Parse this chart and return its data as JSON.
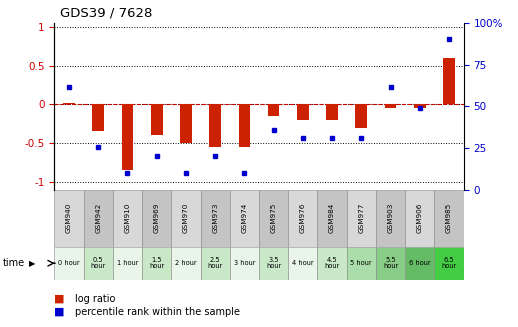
{
  "title": "GDS39 / 7628",
  "samples": [
    "GSM940",
    "GSM942",
    "GSM910",
    "GSM969",
    "GSM970",
    "GSM973",
    "GSM974",
    "GSM975",
    "GSM976",
    "GSM984",
    "GSM977",
    "GSM903",
    "GSM906",
    "GSM985"
  ],
  "time_labels": [
    "0 hour",
    "0.5\nhour",
    "1 hour",
    "1.5\nhour",
    "2 hour",
    "2.5\nhour",
    "3 hour",
    "3.5\nhour",
    "4 hour",
    "4.5\nhour",
    "5 hour",
    "5.5\nhour",
    "6 hour",
    "6.5\nhour"
  ],
  "log_ratio": [
    0.02,
    -0.35,
    -0.85,
    -0.4,
    -0.5,
    -0.55,
    -0.55,
    -0.15,
    -0.2,
    -0.2,
    -0.3,
    -0.05,
    -0.05,
    0.6
  ],
  "percentile": [
    60,
    25,
    10,
    20,
    10,
    20,
    10,
    35,
    30,
    30,
    30,
    60,
    48,
    88
  ],
  "gsm_bg_colors": [
    "#d8d8d8",
    "#c4c4c4",
    "#d8d8d8",
    "#c4c4c4",
    "#d8d8d8",
    "#c4c4c4",
    "#d8d8d8",
    "#c4c4c4",
    "#d8d8d8",
    "#c4c4c4",
    "#d8d8d8",
    "#c4c4c4",
    "#d8d8d8",
    "#c4c4c4"
  ],
  "time_bg_colors": [
    "#e8f5e8",
    "#c8e8c8",
    "#e8f5e8",
    "#c8e8c8",
    "#e8f5e8",
    "#c8e8c8",
    "#e8f5e8",
    "#c8e8c8",
    "#e8f5e8",
    "#c8e8c8",
    "#aaddaa",
    "#88cc88",
    "#66bb66",
    "#44cc44"
  ],
  "y_left_color": "#cc0000",
  "y_right_color": "#0000cc",
  "bar_color": "#cc2200",
  "dot_color": "#0000cc",
  "zero_line_color": "#cc0000",
  "ylim_left": [
    -1.1,
    1.05
  ],
  "ylim_right": [
    0,
    100
  ],
  "yticks_left": [
    -1,
    -0.5,
    0,
    0.5,
    1
  ],
  "ytick_labels_left": [
    "-1",
    "-0.5",
    "0",
    "0.5",
    "1"
  ],
  "yticks_right": [
    0,
    25,
    50,
    75,
    100
  ],
  "ytick_labels_right": [
    "0",
    "25",
    "50",
    "75",
    "100%"
  ],
  "bar_width": 0.4
}
